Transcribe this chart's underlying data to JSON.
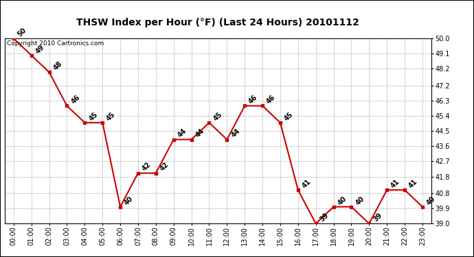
{
  "title": "THSW Index per Hour (°F) (Last 24 Hours) 20101112",
  "copyright": "Copyright 2010 Cartronics.com",
  "hours": [
    "00:00",
    "01:00",
    "02:00",
    "03:00",
    "04:00",
    "05:00",
    "06:00",
    "07:00",
    "08:00",
    "09:00",
    "10:00",
    "11:00",
    "12:00",
    "13:00",
    "14:00",
    "15:00",
    "16:00",
    "17:00",
    "18:00",
    "19:00",
    "20:00",
    "21:00",
    "22:00",
    "23:00"
  ],
  "values": [
    50,
    49,
    48,
    46,
    45,
    45,
    40,
    42,
    42,
    44,
    44,
    45,
    44,
    46,
    46,
    45,
    41,
    39,
    40,
    40,
    39,
    41,
    41,
    40
  ],
  "ylim": [
    39.0,
    50.0
  ],
  "yticks": [
    39.0,
    39.9,
    40.8,
    41.8,
    42.7,
    43.6,
    44.5,
    45.4,
    46.3,
    47.2,
    48.2,
    49.1,
    50.0
  ],
  "line_color": "#cc0000",
  "marker_color": "#cc0000",
  "bg_color": "#ffffff",
  "plot_bg_color": "#ffffff",
  "grid_color": "#aaaaaa",
  "title_fontsize": 10,
  "label_fontsize": 7,
  "tick_fontsize": 7,
  "copyright_fontsize": 6.5
}
